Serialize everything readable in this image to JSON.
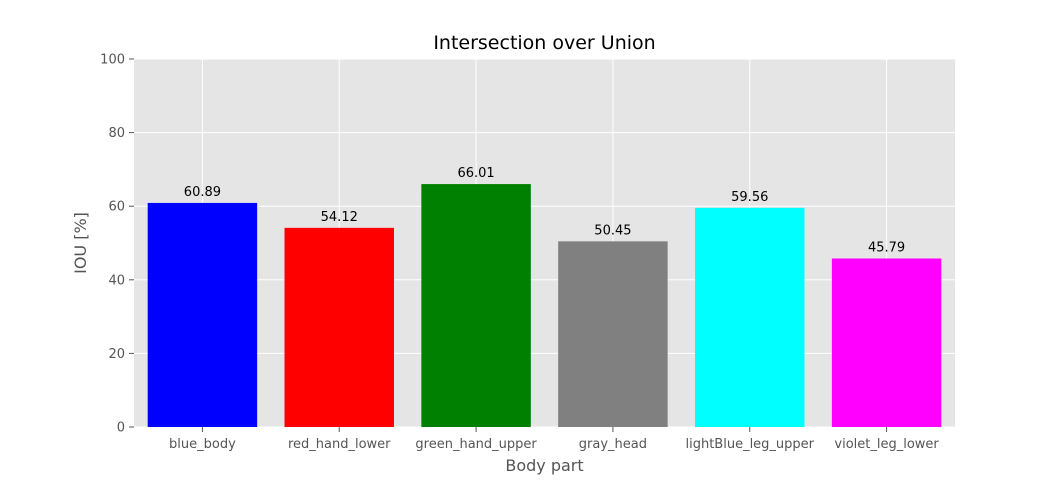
{
  "chart_data": {
    "type": "bar",
    "title": "Intersection over Union",
    "xlabel": "Body part",
    "ylabel": "IOU [%]",
    "ylim": [
      0,
      100
    ],
    "yticks": [
      "0",
      "20",
      "40",
      "60",
      "80",
      "100"
    ],
    "categories": [
      "blue_body",
      "red_hand_lower",
      "green_hand_upper",
      "gray_head",
      "lightBlue_leg_upper",
      "violet_leg_lower"
    ],
    "values": [
      60.89,
      54.12,
      66.01,
      50.45,
      59.56,
      45.79
    ],
    "value_labels": [
      "60.89",
      "54.12",
      "66.01",
      "50.45",
      "59.56",
      "45.79"
    ],
    "colors": [
      "#0000ff",
      "#ff0000",
      "#008000",
      "#808080",
      "#00ffff",
      "#ff00ff"
    ],
    "grid": true,
    "plot_background": "#e5e5e5",
    "grid_color": "#ffffff"
  }
}
